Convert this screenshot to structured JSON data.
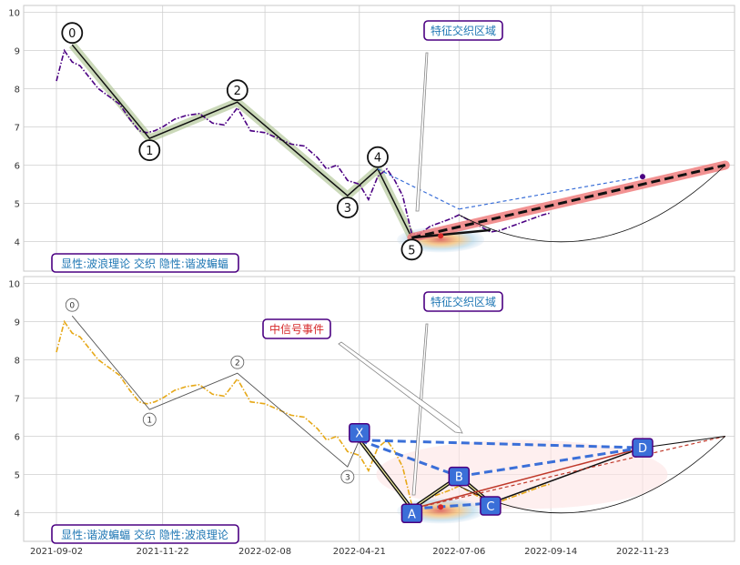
{
  "chart_data": [
    {
      "type": "line",
      "panel": "top",
      "x_dates": [
        "2021-09-02",
        "2021-11-22",
        "2022-02-08",
        "2022-04-21",
        "2022-07-06",
        "2022-09-14",
        "2022-11-23"
      ],
      "ylim": [
        3.6,
        10.2
      ],
      "yticks": [
        "4",
        "5",
        "6",
        "7",
        "8",
        "9",
        "10"
      ],
      "grid": true,
      "price_series": {
        "color": "#4b0082",
        "style": "dash-dot",
        "points": [
          [
            "2021-09-02",
            8.2
          ],
          [
            "2021-09-08",
            9.0
          ],
          [
            "2021-09-14",
            8.7
          ],
          [
            "2021-09-20",
            8.6
          ],
          [
            "2021-09-27",
            8.3
          ],
          [
            "2021-10-04",
            8.0
          ],
          [
            "2021-10-12",
            7.8
          ],
          [
            "2021-10-20",
            7.6
          ],
          [
            "2021-10-28",
            7.2
          ],
          [
            "2021-11-04",
            6.9
          ],
          [
            "2021-11-10",
            6.85
          ],
          [
            "2021-11-16",
            6.9
          ],
          [
            "2021-11-22",
            7.0
          ],
          [
            "2021-12-01",
            7.2
          ],
          [
            "2021-12-10",
            7.3
          ],
          [
            "2021-12-20",
            7.35
          ],
          [
            "2021-12-30",
            7.1
          ],
          [
            "2022-01-08",
            7.05
          ],
          [
            "2022-01-18",
            7.5
          ],
          [
            "2022-01-28",
            6.9
          ],
          [
            "2022-02-08",
            6.85
          ],
          [
            "2022-02-18",
            6.7
          ],
          [
            "2022-02-28",
            6.55
          ],
          [
            "2022-03-10",
            6.5
          ],
          [
            "2022-03-20",
            6.2
          ],
          [
            "2022-03-27",
            5.9
          ],
          [
            "2022-04-04",
            6.0
          ],
          [
            "2022-04-12",
            5.6
          ],
          [
            "2022-04-21",
            5.5
          ],
          [
            "2022-04-28",
            5.1
          ],
          [
            "2022-05-05",
            5.7
          ],
          [
            "2022-05-12",
            5.9
          ],
          [
            "2022-05-18",
            5.6
          ],
          [
            "2022-05-24",
            5.2
          ],
          [
            "2022-05-31",
            4.2
          ],
          [
            "2022-06-06",
            4.2
          ],
          [
            "2022-06-14",
            4.4
          ],
          [
            "2022-06-22",
            4.5
          ],
          [
            "2022-06-30",
            4.6
          ],
          [
            "2022-07-06",
            4.7
          ],
          [
            "2022-07-14",
            4.55
          ],
          [
            "2022-07-22",
            4.4
          ],
          [
            "2022-07-30",
            4.25
          ],
          [
            "2022-08-07",
            4.3
          ],
          [
            "2022-08-15",
            4.4
          ],
          [
            "2022-08-23",
            4.5
          ],
          [
            "2022-08-31",
            4.6
          ],
          [
            "2022-09-08",
            4.7
          ],
          [
            "2022-09-14",
            4.75
          ]
        ]
      },
      "wave_points": [
        {
          "label": "0",
          "x": "2021-09-14",
          "y": 9.15
        },
        {
          "label": "1",
          "x": "2021-11-12",
          "y": 6.7
        },
        {
          "label": "2",
          "x": "2022-01-18",
          "y": 7.65
        },
        {
          "label": "3",
          "x": "2022-04-12",
          "y": 5.2
        },
        {
          "label": "4",
          "x": "2022-05-05",
          "y": 5.9
        },
        {
          "label": "5",
          "x": "2022-05-31",
          "y": 4.1
        }
      ],
      "projection": {
        "from": [
          "2022-05-31",
          4.1
        ],
        "to": [
          "2023-01-25",
          6.0
        ],
        "color": "#f07f7f"
      },
      "annotations": {
        "title_box": "特征交织区域",
        "bottom_label": "显性:波浪理论 交织 隐性:谐波蝙蝠"
      }
    },
    {
      "type": "line",
      "panel": "bottom",
      "x_dates": [
        "2021-09-02",
        "2021-11-22",
        "2022-02-08",
        "2022-04-21",
        "2022-07-06",
        "2022-09-14",
        "2022-11-23"
      ],
      "ylim": [
        3.6,
        10.2
      ],
      "yticks": [
        "4",
        "5",
        "6",
        "7",
        "8",
        "9",
        "10"
      ],
      "grid": true,
      "price_series": {
        "color": "#e6a817",
        "style": "dash-dot"
      },
      "wave_points": [
        {
          "label": "0",
          "x": "2021-09-14",
          "y": 9.15
        },
        {
          "label": "1",
          "x": "2021-11-12",
          "y": 6.7
        },
        {
          "label": "2",
          "x": "2022-01-18",
          "y": 7.65
        },
        {
          "label": "3",
          "x": "2022-04-12",
          "y": 5.2
        }
      ],
      "harmonic_points": [
        {
          "label": "X",
          "x": "2022-04-21",
          "y": 5.9
        },
        {
          "label": "A",
          "x": "2022-05-31",
          "y": 4.1
        },
        {
          "label": "B",
          "x": "2022-07-06",
          "y": 4.95
        },
        {
          "label": "C",
          "x": "2022-07-30",
          "y": 4.25
        },
        {
          "label": "D",
          "x": "2022-11-23",
          "y": 5.7
        }
      ],
      "annotations": {
        "title_box": "特征交织区域",
        "signal_box": "中信号事件",
        "bottom_label": "显性:谐波蝙蝠 交织 隐性:波浪理论"
      }
    }
  ],
  "colors": {
    "axis_text": "#333333",
    "grid": "#cfcfcf",
    "box_border": "#4b0082",
    "box_text": "#1f77b4",
    "signal_text": "#d62728",
    "harmonic_box": "#3a6fd8",
    "harmonic_dash": "#3a6fd8"
  }
}
